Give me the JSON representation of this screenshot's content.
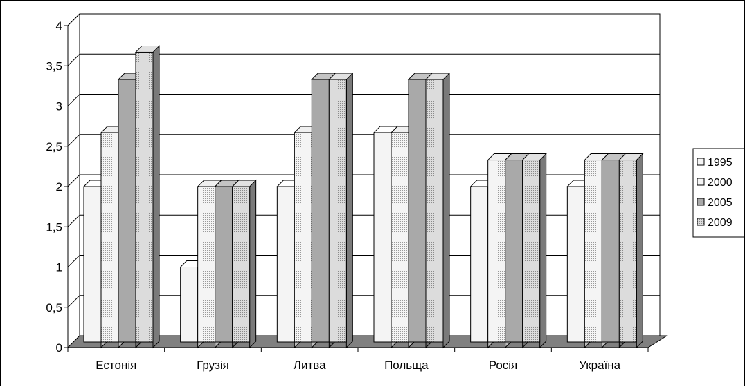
{
  "chart_data": {
    "type": "bar",
    "style": "3d-clustered-column",
    "title": "",
    "xlabel": "",
    "ylabel": "",
    "categories": [
      "Естонія",
      "Грузія",
      "Литва",
      "Польща",
      "Росія",
      "Україна"
    ],
    "series": [
      {
        "name": "1995",
        "values": [
          2,
          1,
          2,
          2.67,
          2,
          2
        ],
        "fill": "#f2f2f2",
        "pattern": "plain"
      },
      {
        "name": "2000",
        "values": [
          2.67,
          2,
          2.67,
          2.67,
          2.33,
          2.33
        ],
        "fill": "#f2f2f2",
        "pattern": "dots"
      },
      {
        "name": "2005",
        "values": [
          3.33,
          2,
          3.33,
          3.33,
          2.33,
          2.33
        ],
        "fill": "#a9a9a9",
        "pattern": "plain"
      },
      {
        "name": "2009",
        "values": [
          3.67,
          2,
          3.33,
          3.33,
          2.33,
          2.33
        ],
        "fill": "#d0d0d0",
        "pattern": "dots"
      }
    ],
    "ylim": [
      0,
      4
    ],
    "yticks": [
      "0",
      "0,5",
      "1",
      "1,5",
      "2",
      "2,5",
      "3",
      "3,5",
      "4"
    ],
    "grid": true,
    "legend_position": "right",
    "colors": {
      "gridline": "#000000",
      "floor": "#808080",
      "frame": "#000000"
    }
  }
}
